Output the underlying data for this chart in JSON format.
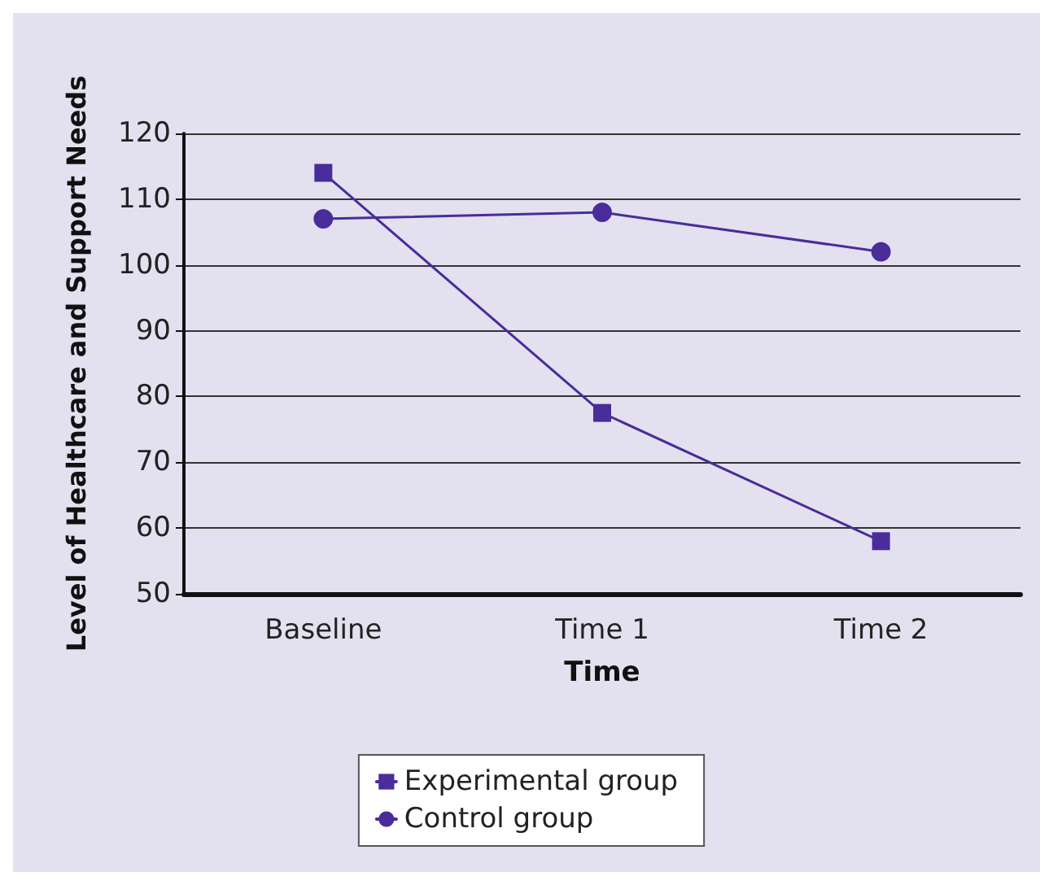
{
  "chart_data": {
    "type": "line",
    "xlabel": "Time",
    "ylabel": "Level of Healthcare and Support Needs",
    "categories": [
      "Baseline",
      "Time 1",
      "Time 2"
    ],
    "series": [
      {
        "name": "Experimental group",
        "color": "#4a2c9a",
        "values": [
          114,
          77.5,
          58
        ],
        "marker": "square"
      },
      {
        "name": "Control group",
        "color": "#4a2c9a",
        "values": [
          107,
          108,
          102
        ],
        "marker": "circle"
      }
    ],
    "ylim": [
      50,
      120
    ],
    "yticks": [
      50,
      60,
      70,
      80,
      90,
      100,
      110,
      120
    ],
    "grid": "y",
    "legend": "bottom",
    "line_style": "solid"
  }
}
